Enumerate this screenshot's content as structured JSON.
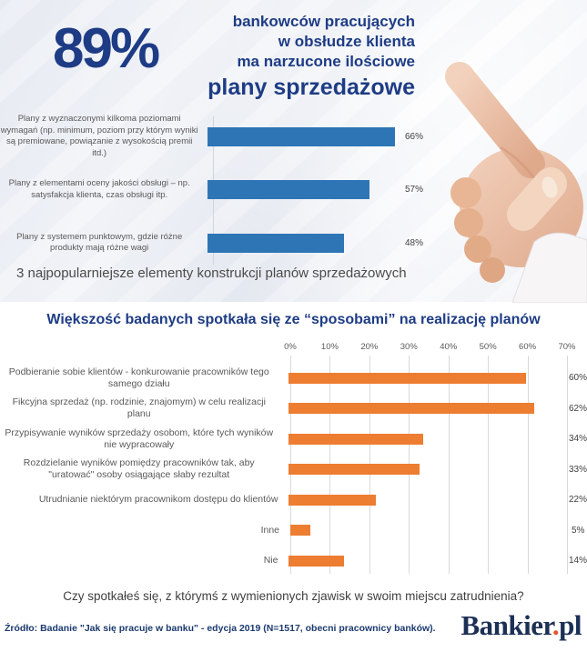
{
  "header": {
    "stat": "89%",
    "line1": "bankowców pracujących",
    "line2": "w obsłudze klienta",
    "line3": "ma narzucone ilościowe",
    "emphasis": "plany sprzedażowe"
  },
  "chart_data": [
    {
      "type": "bar",
      "orientation": "horizontal",
      "caption": "3 najpopularniejsze elementy konstrukcji planów sprzedażowych",
      "categories": [
        "Plany z wyznaczonymi kilkoma poziomami wymagań (np. minimum, poziom przy którym wyniki są premiowane, powiązanie z wysokością premii itd.)",
        "Plany z elementami oceny jakości obsługi – np. satysfakcja klienta, czas obsługi itp.",
        "Plany z systemem punktowym, gdzie różne produkty mają różne wagi"
      ],
      "values": [
        66,
        57,
        48
      ],
      "value_labels": [
        "66%",
        "57%",
        "48%"
      ],
      "bar_color": "#2e75b6",
      "xlim": [
        0,
        70
      ],
      "grid": false,
      "legend": "none"
    },
    {
      "type": "bar",
      "orientation": "horizontal",
      "title": "Większość badanych spotkała się ze “sposobami” na realizację planów",
      "caption": "Czy spotkałeś się, z którymś z wymienionych zjawisk w swoim miejscu zatrudnienia?",
      "categories": [
        "Podbieranie sobie klientów - konkurowanie pracowników tego samego działu",
        "Fikcyjna sprzedaż (np. rodzinie, znajomym) w celu realizacji planu",
        "Przypisywanie wyników sprzedaży osobom, które tych wyników nie wypracowały",
        "Rozdzielanie wyników pomiędzy pracowników tak, aby \"uratować\" osoby osiągające słaby rezultat",
        "Utrudnianie niektórym pracownikom dostępu do klientów",
        "Inne",
        "Nie"
      ],
      "values": [
        60,
        62,
        34,
        33,
        22,
        5,
        14
      ],
      "value_labels": [
        "60%",
        "62%",
        "34%",
        "33%",
        "22%",
        "5%",
        "14%"
      ],
      "axis_ticks": [
        "0%",
        "10%",
        "20%",
        "30%",
        "40%",
        "50%",
        "60%",
        "70%"
      ],
      "xlim": [
        0,
        70
      ],
      "grid": true,
      "bar_color": "#ed7d31"
    }
  ],
  "footer": {
    "source": "Źródło: Badanie \"Jak się pracuje w banku\" - edycja 2019 (N=1517, obecni pracownicy banków).",
    "logo_text": "Bankier",
    "logo_dot": ".",
    "logo_suffix": "pl"
  },
  "colors": {
    "headline_navy": "#1e3c85",
    "bar_blue": "#2e75b6",
    "bar_orange": "#ed7d31",
    "logo_navy": "#1c2f55",
    "logo_dot_orange": "#e8542e"
  }
}
